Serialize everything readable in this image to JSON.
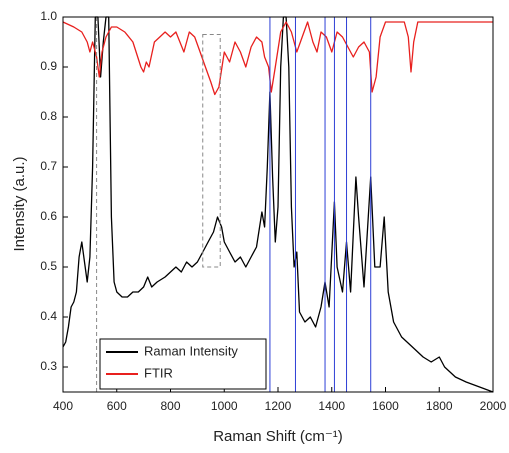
{
  "chart_data": {
    "type": "line",
    "xlabel": "Raman Shift (cm⁻¹)",
    "ylabel": "Intensity (a.u.)",
    "xlim": [
      400,
      2000
    ],
    "xticks": [
      400,
      600,
      800,
      1000,
      1200,
      1400,
      1600,
      1800,
      2000
    ],
    "ylim": [
      0.25,
      1.0
    ],
    "yticks": [
      0.3,
      0.4,
      0.5,
      0.6,
      0.7,
      0.8,
      0.9,
      {
        "value": 1.0,
        "label": "1.0"
      }
    ],
    "legend": "lower left",
    "series": [
      {
        "name": "Raman Intensity",
        "color": "#000000",
        "x": [
          400,
          410,
          420,
          430,
          440,
          450,
          460,
          470,
          480,
          490,
          500,
          510,
          520,
          530,
          540,
          550,
          560,
          570,
          580,
          590,
          600,
          620,
          640,
          660,
          680,
          700,
          715,
          730,
          750,
          780,
          800,
          820,
          840,
          860,
          880,
          900,
          920,
          940,
          960,
          975,
          990,
          1000,
          1020,
          1040,
          1060,
          1080,
          1100,
          1120,
          1140,
          1150,
          1160,
          1170,
          1180,
          1190,
          1200,
          1210,
          1220,
          1230,
          1240,
          1250,
          1260,
          1270,
          1280,
          1300,
          1320,
          1340,
          1360,
          1375,
          1390,
          1410,
          1420,
          1440,
          1455,
          1470,
          1490,
          1500,
          1520,
          1545,
          1560,
          1580,
          1595,
          1610,
          1630,
          1660,
          1700,
          1740,
          1770,
          1800,
          1820,
          1860,
          1900,
          1950,
          2000
        ],
        "values": [
          0.34,
          0.35,
          0.38,
          0.42,
          0.43,
          0.45,
          0.52,
          0.55,
          0.51,
          0.47,
          0.52,
          0.7,
          1.0,
          1.0,
          0.88,
          0.95,
          1.0,
          1.0,
          0.6,
          0.47,
          0.45,
          0.44,
          0.44,
          0.45,
          0.45,
          0.46,
          0.48,
          0.46,
          0.47,
          0.48,
          0.49,
          0.5,
          0.49,
          0.51,
          0.5,
          0.51,
          0.53,
          0.55,
          0.57,
          0.6,
          0.58,
          0.55,
          0.53,
          0.51,
          0.52,
          0.5,
          0.52,
          0.54,
          0.61,
          0.58,
          0.7,
          0.85,
          0.68,
          0.55,
          0.62,
          0.9,
          1.0,
          1.0,
          0.9,
          0.62,
          0.5,
          0.53,
          0.41,
          0.39,
          0.4,
          0.38,
          0.42,
          0.47,
          0.42,
          0.63,
          0.5,
          0.45,
          0.55,
          0.45,
          0.68,
          0.6,
          0.46,
          0.68,
          0.5,
          0.5,
          0.6,
          0.45,
          0.39,
          0.36,
          0.34,
          0.32,
          0.31,
          0.32,
          0.3,
          0.28,
          0.27,
          0.26,
          0.25
        ]
      },
      {
        "name": "FTIR",
        "color": "#e8201e",
        "x": [
          400,
          440,
          470,
          490,
          500,
          510,
          525,
          535,
          545,
          560,
          580,
          600,
          630,
          660,
          690,
          700,
          710,
          720,
          740,
          760,
          780,
          800,
          820,
          850,
          870,
          890,
          910,
          930,
          950,
          965,
          980,
          1000,
          1020,
          1040,
          1060,
          1080,
          1100,
          1120,
          1140,
          1150,
          1165,
          1175,
          1190,
          1210,
          1230,
          1250,
          1270,
          1290,
          1310,
          1330,
          1345,
          1360,
          1380,
          1400,
          1420,
          1440,
          1460,
          1480,
          1500,
          1520,
          1540,
          1550,
          1565,
          1580,
          1600,
          1640,
          1670,
          1685,
          1695,
          1705,
          1720,
          1800,
          1900,
          2000
        ],
        "values": [
          0.99,
          0.98,
          0.97,
          0.95,
          0.93,
          0.95,
          0.92,
          0.88,
          0.93,
          0.96,
          0.98,
          0.98,
          0.97,
          0.95,
          0.9,
          0.89,
          0.91,
          0.9,
          0.95,
          0.96,
          0.97,
          0.96,
          0.97,
          0.93,
          0.97,
          0.96,
          0.93,
          0.9,
          0.87,
          0.845,
          0.86,
          0.93,
          0.91,
          0.95,
          0.93,
          0.9,
          0.94,
          0.96,
          0.95,
          0.92,
          0.9,
          0.85,
          0.9,
          0.97,
          0.99,
          0.97,
          0.93,
          0.96,
          0.99,
          0.95,
          0.93,
          0.97,
          0.96,
          0.93,
          0.97,
          0.96,
          0.94,
          0.92,
          0.94,
          0.95,
          0.93,
          0.85,
          0.88,
          0.96,
          0.99,
          0.99,
          0.99,
          0.96,
          0.89,
          0.95,
          0.99,
          0.99,
          0.99,
          0.99
        ]
      }
    ],
    "vlines": [
      1170,
      1265,
      1375,
      1410,
      1455,
      1545
    ],
    "vline_color": "#2d3fd6",
    "dashed_line": 525,
    "highlight_box": {
      "x": [
        920,
        985
      ],
      "y": [
        0.5,
        0.965
      ]
    }
  }
}
